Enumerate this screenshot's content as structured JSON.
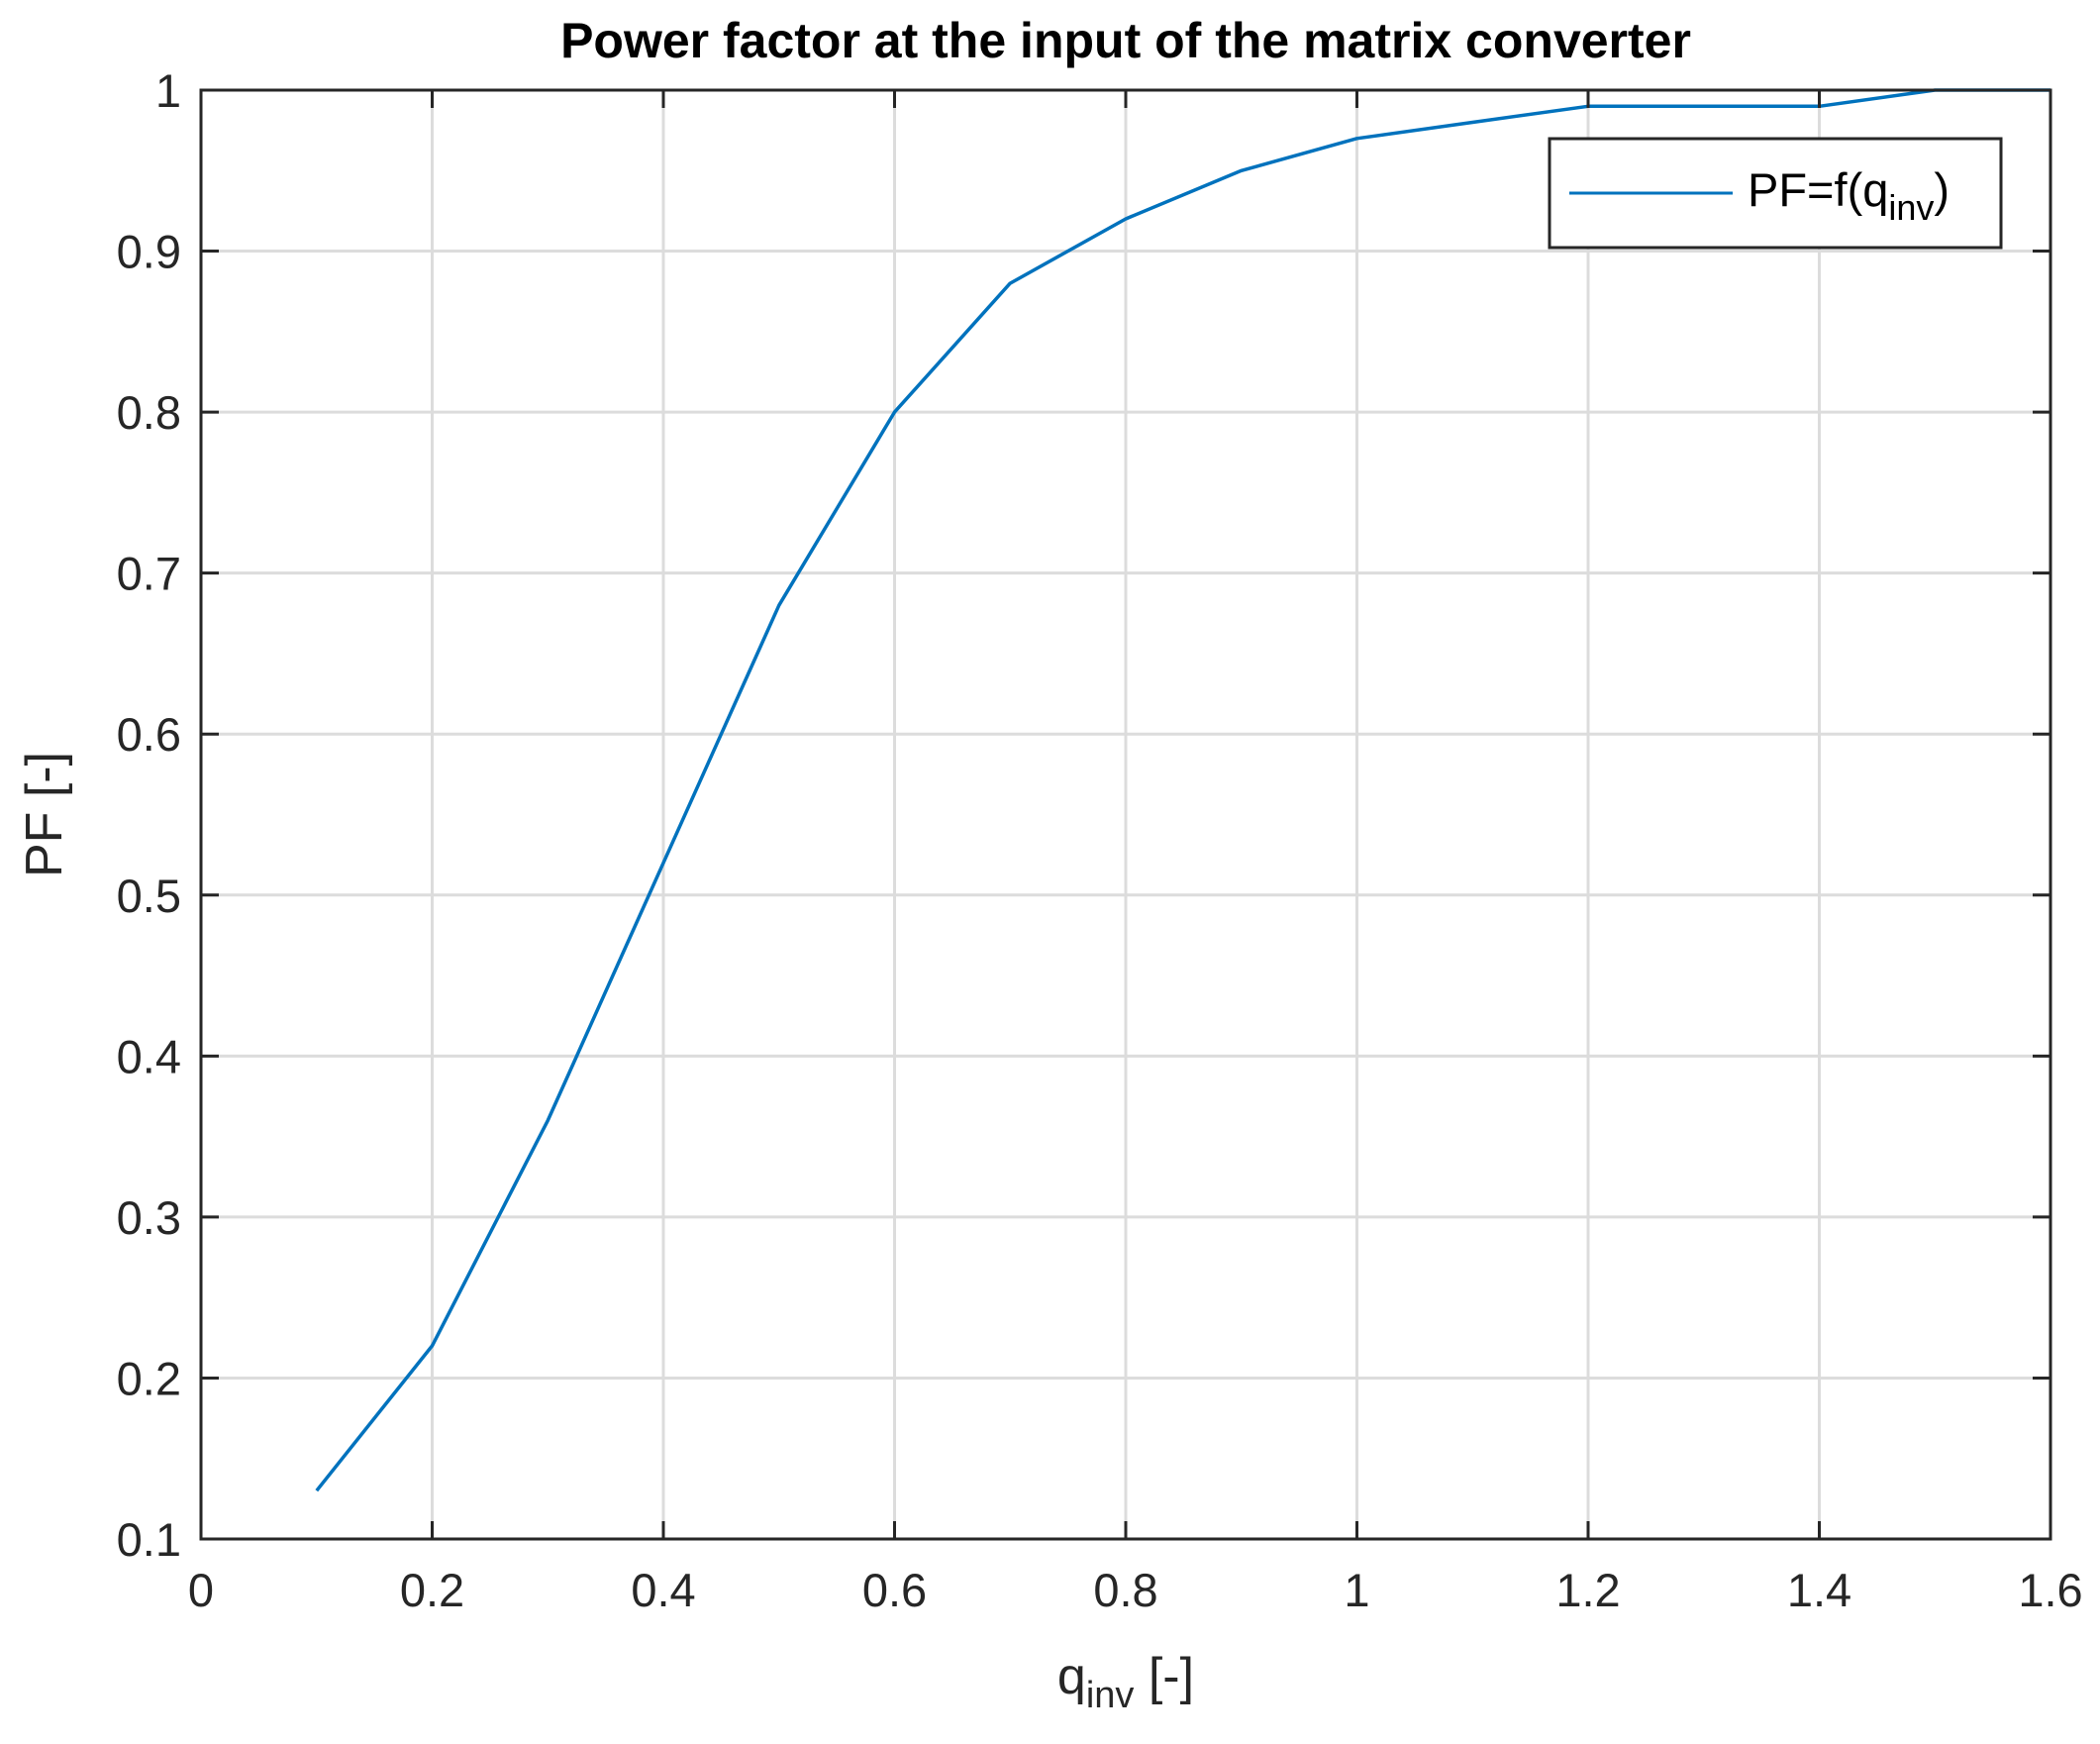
{
  "chart_data": {
    "type": "line",
    "title": "Power factor at the input of the matrix converter",
    "xlabel": {
      "base": "q",
      "sub": "inv",
      "suffix": " [-]"
    },
    "ylabel": "PF [-]",
    "xlim": [
      0,
      1.6
    ],
    "ylim": [
      0.1,
      1
    ],
    "xticks": [
      0,
      0.2,
      0.4,
      0.6,
      0.8,
      1,
      1.2,
      1.4,
      1.6
    ],
    "xtick_labels": [
      "0",
      "0.2",
      "0.4",
      "0.6",
      "0.8",
      "1",
      "1.2",
      "1.4",
      "1.6"
    ],
    "yticks": [
      0.1,
      0.2,
      0.3,
      0.4,
      0.5,
      0.6,
      0.7,
      0.8,
      0.9,
      1
    ],
    "ytick_labels": [
      "0.1",
      "0.2",
      "0.3",
      "0.4",
      "0.5",
      "0.6",
      "0.7",
      "0.8",
      "0.9",
      "1"
    ],
    "grid": true,
    "legend_position": "top-right",
    "series": [
      {
        "legend": {
          "base": "PF=f(q",
          "sub": "inv",
          "suffix": ")"
        },
        "color": "#0072BD",
        "x": [
          0.1,
          0.2,
          0.3,
          0.4,
          0.5,
          0.6,
          0.7,
          0.8,
          0.9,
          1.0,
          1.1,
          1.2,
          1.3,
          1.4,
          1.5,
          1.6
        ],
        "y": [
          0.13,
          0.22,
          0.36,
          0.52,
          0.68,
          0.8,
          0.88,
          0.92,
          0.95,
          0.97,
          0.98,
          0.99,
          0.99,
          0.99,
          1.0,
          1.0
        ]
      }
    ]
  }
}
